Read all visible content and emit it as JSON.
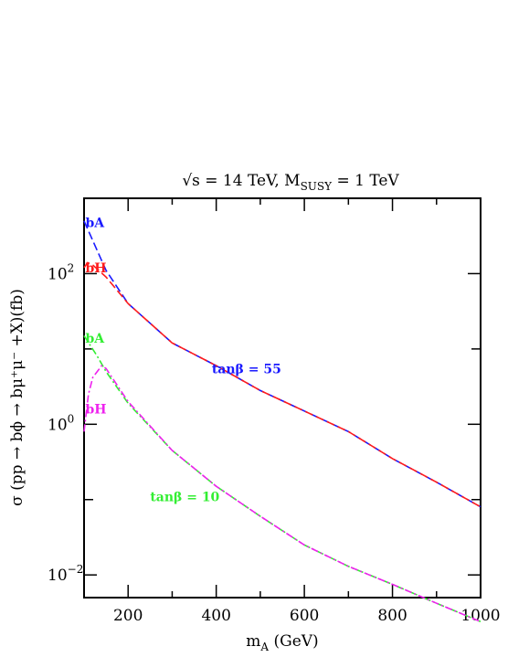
{
  "chart_data": {
    "type": "line",
    "title": "√s = 14 TeV, M_SUSY = 1 TeV",
    "title_parts": {
      "sqrt_s": "√s",
      "rest": " = 14 TeV,  M",
      "msusy_sub": "SUSY",
      "end": " = 1 TeV"
    },
    "xlabel": "m_A (GeV)",
    "xlabel_parts": {
      "main": "m",
      "sub": "A",
      "unit": " (GeV)"
    },
    "ylabel": "σ (pp → bϕ → bμ⁺μ⁻ +X)(fb)",
    "ylabel_text": "σ (pp → bϕ → bμ⁺μ⁻ +X)(fb)",
    "xlim": [
      100,
      1000
    ],
    "ylim": [
      0.005,
      1000
    ],
    "yscale": "log",
    "x_ticks": [
      200,
      400,
      600,
      800,
      1000
    ],
    "x_tick_labels": [
      "200",
      "400",
      "600",
      "800",
      "1000"
    ],
    "y_ticks_labeled": [
      {
        "value": 0.01,
        "base": "10",
        "exp": "−2"
      },
      {
        "value": 1,
        "base": "10",
        "exp": "0"
      },
      {
        "value": 100,
        "base": "10",
        "exp": "2"
      }
    ],
    "y_ticks_minor": [
      0.1,
      10
    ],
    "series": [
      {
        "name": "bA",
        "group": "tanβ = 55",
        "color": "#1a1aff",
        "style": "dashed",
        "x": [
          100,
          150,
          200,
          300,
          400,
          500,
          600,
          700,
          800,
          900,
          1000
        ],
        "y": [
          500,
          110,
          40,
          12,
          6,
          2.8,
          1.5,
          0.8,
          0.35,
          0.17,
          0.08
        ]
      },
      {
        "name": "bH",
        "group": "tanβ = 55",
        "color": "#ff1a1a",
        "style": "dashed",
        "x": [
          100,
          108,
          120,
          150,
          200,
          300,
          400,
          500,
          600,
          700,
          800,
          900,
          1000
        ],
        "y": [
          120,
          140,
          130,
          90,
          40,
          12,
          6,
          2.8,
          1.5,
          0.8,
          0.35,
          0.17,
          0.08
        ]
      },
      {
        "name": "bA",
        "group": "tanβ = 10",
        "color": "#33ee33",
        "style": "dotdash",
        "x": [
          100,
          130,
          150,
          200,
          300,
          400,
          500,
          600,
          700,
          800,
          900,
          1000
        ],
        "y": [
          15,
          8,
          5,
          1.9,
          0.45,
          0.15,
          0.06,
          0.025,
          0.013,
          0.0075,
          0.0042,
          0.0024
        ]
      },
      {
        "name": "bH",
        "group": "tanβ = 10",
        "color": "#ee22ee",
        "style": "dotdash",
        "x": [
          100,
          110,
          120,
          140,
          150,
          200,
          300,
          400,
          500,
          600,
          700,
          800,
          900,
          1000
        ],
        "y": [
          0.8,
          2.5,
          4.2,
          6,
          5.5,
          2,
          0.45,
          0.15,
          0.06,
          0.025,
          0.013,
          0.0075,
          0.0042,
          0.0024
        ]
      }
    ],
    "annotations": [
      {
        "text": "bA",
        "color": "#1a1aff",
        "x": 103,
        "y": 480
      },
      {
        "text": "bH",
        "color": "#ff1a1a",
        "x": 103,
        "y": 120
      },
      {
        "text": "tanβ = 55",
        "color": "#1a1aff",
        "x": 390,
        "y": 5.5
      },
      {
        "text": "bA",
        "color": "#33ee33",
        "x": 103,
        "y": 14
      },
      {
        "text": "bH",
        "color": "#ee22ee",
        "x": 103,
        "y": 1.6
      },
      {
        "text": "tanβ = 10",
        "color": "#33ee33",
        "x": 250,
        "y": 0.11
      }
    ],
    "grid": false,
    "legend": "none"
  }
}
